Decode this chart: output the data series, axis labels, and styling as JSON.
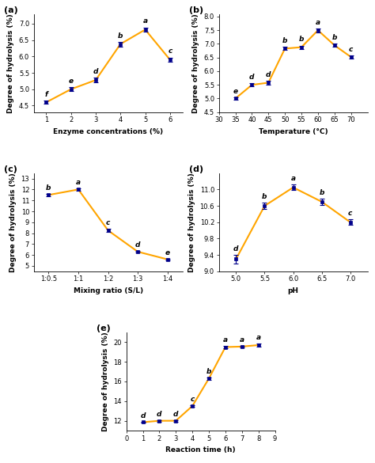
{
  "subplots": [
    {
      "label": "(a)",
      "x": [
        1,
        2,
        3,
        4,
        5,
        6
      ],
      "y": [
        4.6,
        5.0,
        5.28,
        6.38,
        6.82,
        5.9
      ],
      "yerr": [
        0.05,
        0.06,
        0.07,
        0.07,
        0.07,
        0.07
      ],
      "point_labels": [
        "f",
        "e",
        "d",
        "b",
        "a",
        "c"
      ],
      "xlabel": "Enzyme concentrations (%)",
      "ylabel": "Degree of hydrolysis (%)",
      "xlim": [
        0.5,
        6.5
      ],
      "ylim": [
        4.3,
        7.3
      ],
      "xticks": [
        1,
        2,
        3,
        4,
        5,
        6
      ],
      "yticks": [
        4.5,
        5.0,
        5.5,
        6.0,
        6.5,
        7.0
      ]
    },
    {
      "label": "(b)",
      "x": [
        35,
        40,
        45,
        50,
        55,
        60,
        65,
        70
      ],
      "y": [
        5.0,
        5.5,
        5.58,
        6.83,
        6.88,
        7.5,
        6.95,
        6.52
      ],
      "yerr": [
        0.05,
        0.06,
        0.06,
        0.06,
        0.06,
        0.07,
        0.06,
        0.07
      ],
      "point_labels": [
        "e",
        "d",
        "d",
        "b",
        "b",
        "a",
        "b",
        "c"
      ],
      "xlabel": "Temperature (°C)",
      "ylabel": "Degree of hydrolysis (%)",
      "xlim": [
        30,
        75
      ],
      "ylim": [
        4.5,
        8.1
      ],
      "xticks": [
        30,
        35,
        40,
        45,
        50,
        55,
        60,
        65,
        70
      ],
      "yticks": [
        4.5,
        5.0,
        5.5,
        6.0,
        6.5,
        7.0,
        7.5,
        8.0
      ]
    },
    {
      "label": "(c)",
      "x": [
        0,
        1,
        2,
        3,
        4
      ],
      "y": [
        11.5,
        12.0,
        8.25,
        6.3,
        5.6
      ],
      "yerr": [
        0.1,
        0.1,
        0.12,
        0.1,
        0.08
      ],
      "point_labels": [
        "b",
        "a",
        "c",
        "d",
        "e"
      ],
      "xlabel": "Mixing ratio (S/L)",
      "ylabel": "Degree of hydrolysis (%)",
      "xlim": [
        -0.5,
        4.5
      ],
      "ylim": [
        4.5,
        13.5
      ],
      "xticks": [
        0,
        1,
        2,
        3,
        4
      ],
      "xticklabels": [
        "1:0.5",
        "1:1",
        "1:2",
        "1:3",
        "1:4"
      ],
      "yticks": [
        5,
        6,
        7,
        8,
        9,
        10,
        11,
        12,
        13
      ]
    },
    {
      "label": "(d)",
      "x": [
        5.0,
        5.5,
        6.0,
        6.5,
        7.0
      ],
      "y": [
        9.3,
        10.6,
        11.05,
        10.7,
        10.2
      ],
      "yerr": [
        0.1,
        0.07,
        0.07,
        0.08,
        0.07
      ],
      "point_labels": [
        "d",
        "b",
        "a",
        "b",
        "c"
      ],
      "xlabel": "pH",
      "ylabel": "Degree of hydrolysis (%)",
      "xlim": [
        4.7,
        7.3
      ],
      "ylim": [
        9.0,
        11.4
      ],
      "xticks": [
        5.0,
        5.5,
        6.0,
        6.5,
        7.0
      ],
      "yticks": [
        9.0,
        9.4,
        9.8,
        10.2,
        10.6,
        11.0
      ]
    },
    {
      "label": "(e)",
      "x": [
        1,
        2,
        3,
        4,
        5,
        6,
        7,
        8
      ],
      "y": [
        11.85,
        12.0,
        12.0,
        13.5,
        16.3,
        19.5,
        19.55,
        19.7
      ],
      "yerr": [
        0.07,
        0.07,
        0.07,
        0.1,
        0.12,
        0.1,
        0.1,
        0.15
      ],
      "point_labels": [
        "d",
        "d",
        "d",
        "c",
        "b",
        "a",
        "a",
        "a"
      ],
      "xlabel": "Reaction time (h)",
      "ylabel": "Degree of hydrolysis (%)",
      "xlim": [
        0,
        9
      ],
      "ylim": [
        11,
        21
      ],
      "xticks": [
        0,
        1,
        2,
        3,
        4,
        5,
        6,
        7,
        8,
        9
      ],
      "yticks": [
        12,
        14,
        16,
        18,
        20
      ]
    }
  ],
  "line_color": "#FFA500",
  "marker_color": "#00008B",
  "marker": "s",
  "markersize": 3.5,
  "linewidth": 1.5,
  "axis_label_fontsize": 6.5,
  "tick_fontsize": 6,
  "point_label_fontsize": 6.5,
  "panel_label_fontsize": 8
}
